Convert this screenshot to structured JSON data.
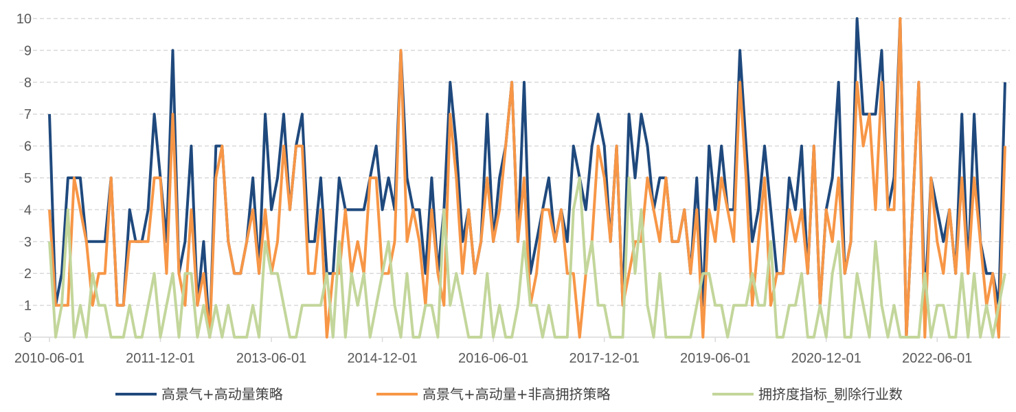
{
  "chart_data": {
    "type": "line",
    "title": "",
    "xlabel": "",
    "ylabel": "",
    "x_start": "2010-06-01",
    "x_frequency": "monthly",
    "x_tick_labels": [
      "2010-06-01",
      "2011-12-01",
      "2013-06-01",
      "2014-12-01",
      "2016-06-01",
      "2017-12-01",
      "2019-06-01",
      "2020-12-01",
      "2022-06-01"
    ],
    "x_tick_every": 18,
    "ylim": [
      0,
      10
    ],
    "y_ticks": [
      "0",
      "1",
      "2",
      "3",
      "4",
      "5",
      "6",
      "7",
      "8",
      "9",
      "10"
    ],
    "grid": "horizontal dashed",
    "legend_position": "bottom",
    "series": [
      {
        "name": "高景气+高动量策略",
        "color": "#1f497d",
        "values": [
          7,
          1,
          2,
          5,
          5,
          5,
          3,
          3,
          3,
          3,
          5,
          1,
          1,
          4,
          3,
          3,
          4,
          7,
          5,
          3,
          9,
          2,
          3,
          6,
          1,
          3,
          0,
          6,
          6,
          3,
          2,
          2,
          3,
          5,
          2,
          7,
          4,
          5,
          7,
          4,
          6,
          7,
          3,
          3,
          5,
          2,
          2,
          5,
          4,
          4,
          4,
          4,
          5,
          6,
          4,
          5,
          4,
          9,
          5,
          4,
          4,
          2,
          5,
          2,
          4,
          8,
          6,
          3,
          4,
          2,
          3,
          7,
          3,
          5,
          6,
          8,
          3,
          8,
          2,
          3,
          4,
          5,
          3,
          4,
          3,
          6,
          5,
          4,
          6,
          7,
          6,
          3,
          6,
          1,
          7,
          5,
          7,
          6,
          4,
          5,
          5,
          3,
          3,
          4,
          2,
          5,
          1,
          6,
          4,
          6,
          4,
          4,
          9,
          6,
          3,
          4,
          6,
          4,
          2,
          2,
          5,
          4,
          6,
          2,
          6,
          1,
          4,
          5,
          8,
          2,
          3,
          10,
          7,
          7,
          7,
          9,
          4,
          5,
          10,
          0,
          4,
          8,
          1,
          5,
          4,
          3,
          4,
          2,
          7,
          2,
          7,
          3,
          2,
          2,
          1,
          8
        ]
      },
      {
        "name": "高景气+高动量+非高拥挤策略",
        "color": "#f79646",
        "values": [
          4,
          1,
          1,
          1,
          5,
          4,
          3,
          1,
          2,
          2,
          5,
          1,
          1,
          3,
          3,
          3,
          3,
          5,
          5,
          2,
          7,
          2,
          1,
          4,
          1,
          2,
          0,
          5,
          6,
          3,
          2,
          2,
          3,
          4,
          2,
          4,
          2,
          3,
          6,
          4,
          6,
          6,
          2,
          2,
          4,
          0,
          2,
          2,
          4,
          2,
          3,
          2,
          5,
          5,
          2,
          2,
          3,
          9,
          3,
          4,
          3,
          1,
          4,
          2,
          1,
          7,
          5,
          2,
          4,
          2,
          3,
          5,
          3,
          4,
          6,
          8,
          3,
          5,
          1,
          2,
          4,
          4,
          3,
          4,
          2,
          2,
          0,
          2,
          3,
          6,
          5,
          3,
          6,
          1,
          2,
          3,
          3,
          5,
          4,
          3,
          5,
          3,
          3,
          4,
          2,
          4,
          0,
          4,
          3,
          5,
          4,
          3,
          8,
          5,
          1,
          3,
          5,
          1,
          2,
          2,
          4,
          3,
          4,
          2,
          6,
          1,
          4,
          3,
          5,
          2,
          3,
          8,
          6,
          7,
          4,
          8,
          4,
          4,
          10,
          0,
          4,
          8,
          0,
          5,
          3,
          2,
          4,
          2,
          5,
          2,
          5,
          3,
          1,
          2,
          0,
          6
        ]
      },
      {
        "name": "拥挤度指标_剔除行业数",
        "color": "#c3d69b",
        "values": [
          3,
          0,
          1,
          4,
          0,
          1,
          0,
          2,
          1,
          1,
          0,
          0,
          0,
          1,
          0,
          0,
          1,
          2,
          0,
          1,
          2,
          0,
          2,
          2,
          0,
          1,
          0,
          1,
          0,
          1,
          0,
          0,
          0,
          1,
          0,
          3,
          2,
          2,
          1,
          0,
          0,
          1,
          1,
          1,
          1,
          2,
          0,
          3,
          0,
          2,
          1,
          2,
          0,
          1,
          2,
          3,
          1,
          0,
          2,
          0,
          0,
          1,
          1,
          0,
          4,
          1,
          2,
          1,
          0,
          0,
          0,
          2,
          0,
          1,
          0,
          0,
          1,
          3,
          1,
          1,
          0,
          1,
          0,
          0,
          0,
          4,
          5,
          2,
          3,
          1,
          1,
          0,
          0,
          0,
          5,
          2,
          4,
          1,
          0,
          2,
          0,
          0,
          0,
          0,
          0,
          1,
          2,
          2,
          1,
          1,
          0,
          1,
          1,
          1,
          2,
          1,
          1,
          3,
          0,
          0,
          1,
          1,
          2,
          0,
          0,
          1,
          0,
          2,
          3,
          0,
          0,
          2,
          1,
          0,
          3,
          1,
          0,
          1,
          0,
          0,
          0,
          0,
          2,
          0,
          1,
          1,
          0,
          0,
          2,
          0,
          2,
          0,
          1,
          0,
          1,
          2
        ]
      }
    ]
  }
}
